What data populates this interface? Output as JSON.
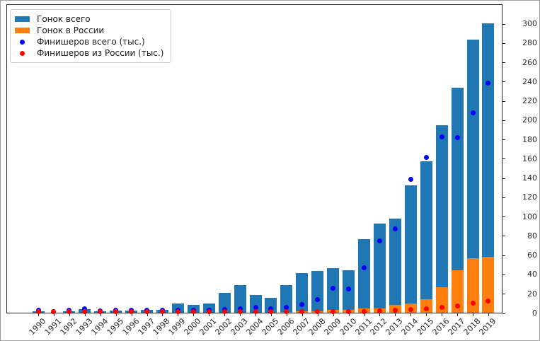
{
  "legend": {
    "items": [
      {
        "label": "Гонок всего",
        "marker": "bar",
        "color": "#1f77b4"
      },
      {
        "label": "Гонок в России",
        "marker": "bar",
        "color": "#ff7f0e"
      },
      {
        "label": "Финишеров всего (тыс.)",
        "marker": "dot",
        "color": "#0000ff"
      },
      {
        "label": "Финишеров из России (тыс.)",
        "marker": "dot",
        "color": "#ff0000"
      }
    ]
  },
  "chart_data": {
    "type": "bar",
    "title": "",
    "xlabel": "",
    "ylabel": "",
    "categories": [
      "1990",
      "1991",
      "1992",
      "1993",
      "1994",
      "1995",
      "1996",
      "1997",
      "1998",
      "1999",
      "2000",
      "2001",
      "2002",
      "2003",
      "2004",
      "2005",
      "2006",
      "2007",
      "2008",
      "2009",
      "2010",
      "2011",
      "2012",
      "2013",
      "2014",
      "2015",
      "2016",
      "2017",
      "2018",
      "2019"
    ],
    "series": [
      {
        "name": "Гонок всего",
        "type": "bar",
        "color": "#1f77b4",
        "values": [
          2.5,
          1,
          2.5,
          4.5,
          2.5,
          3,
          3,
          3.5,
          4,
          10,
          9,
          10,
          21,
          29,
          19,
          16,
          29,
          42,
          44,
          47,
          45,
          77,
          93,
          98,
          133,
          158,
          195,
          234,
          284,
          301
        ]
      },
      {
        "name": "Гонок в России",
        "type": "bar",
        "color": "#ff7f0e",
        "values": [
          0,
          0,
          0,
          0,
          0,
          0,
          0,
          0,
          0,
          0,
          0,
          0,
          0,
          0,
          1,
          1,
          1.5,
          2,
          2.5,
          4,
          4,
          5,
          5.5,
          9,
          10,
          15,
          27,
          45,
          57,
          59
        ]
      },
      {
        "name": "Финишеров всего (тыс.)",
        "type": "scatter",
        "color": "#0000ff",
        "values": [
          3,
          2,
          3,
          5,
          2.5,
          3,
          3,
          3.5,
          3.5,
          3.5,
          3.5,
          3.5,
          4,
          5,
          6,
          5,
          6.5,
          9,
          14,
          26,
          25,
          47,
          75,
          88,
          139,
          162,
          183,
          182,
          208,
          239
        ]
      },
      {
        "name": "Финишеров из России (тыс.)",
        "type": "scatter",
        "color": "#ff0000",
        "values": [
          2,
          2,
          2,
          2,
          2,
          2,
          2,
          2,
          2,
          1.5,
          1.5,
          1.5,
          1.5,
          1.5,
          1.5,
          1.5,
          1.5,
          1.5,
          2,
          2,
          2,
          2,
          2.5,
          3,
          4,
          5,
          6.5,
          8,
          10.5,
          12.5
        ]
      }
    ],
    "bar_mode": "overlay",
    "ylim": [
      0,
      320
    ],
    "yticks": [
      0,
      20,
      40,
      60,
      80,
      100,
      120,
      140,
      160,
      180,
      200,
      220,
      240,
      260,
      280,
      300
    ],
    "y_axis_side": "right",
    "x_tick_rotation": 45,
    "grid": false,
    "legend_position": "upper left"
  }
}
